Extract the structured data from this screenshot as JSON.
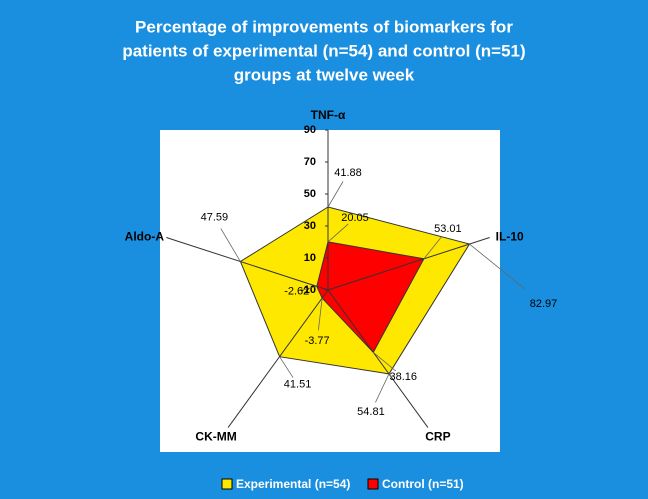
{
  "chart_data": {
    "type": "radar",
    "title": [
      "Percentage of improvements of biomarkers for",
      "patients  of experimental (n=54) and control (n=51)",
      "groups at twelve week"
    ],
    "categories": [
      "TNF-α",
      "IL-10",
      "CRP",
      "CK-MM",
      "Aldo-A"
    ],
    "series": [
      {
        "name": "Experimental (n=54)",
        "color": "#ffe800",
        "values": [
          41.88,
          82.97,
          54.81,
          41.51,
          47.59
        ]
      },
      {
        "name": "Control (n=51)",
        "color": "#ff0000",
        "values": [
          20.05,
          53.01,
          38.16,
          -3.77,
          -2.62
        ]
      }
    ],
    "ylim": [
      -10,
      90
    ],
    "yticks": [
      -10,
      10,
      30,
      50,
      70,
      90
    ]
  }
}
